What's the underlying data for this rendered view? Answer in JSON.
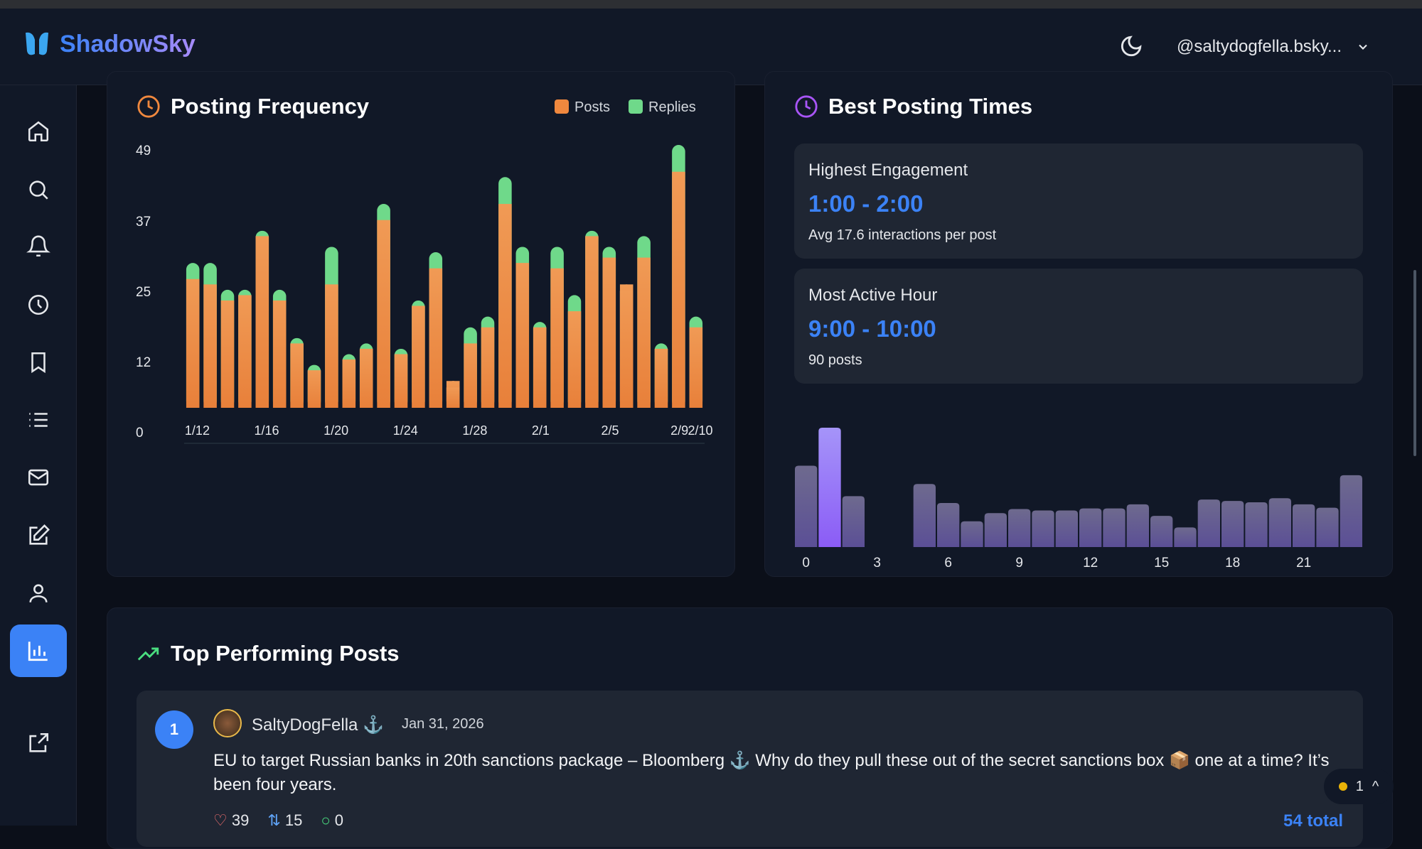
{
  "app": {
    "name": "ShadowSky",
    "user_handle": "@saltydogfella.bsky...",
    "accent": "#3b82f6"
  },
  "sidebar": {
    "items": [
      "home",
      "search",
      "notifications",
      "history",
      "bookmarks",
      "lists",
      "messages",
      "compose",
      "profile",
      "analytics",
      "external-link"
    ],
    "active": "analytics"
  },
  "posting_frequency": {
    "title": "Posting Frequency",
    "legend": [
      "Posts",
      "Replies"
    ]
  },
  "best_times": {
    "title": "Best Posting Times",
    "highest": {
      "label": "Highest Engagement",
      "value": "1:00 - 2:00",
      "sub": "Avg 17.6 interactions per post"
    },
    "active": {
      "label": "Most Active Hour",
      "value": "9:00 - 10:00",
      "sub": "90 posts"
    }
  },
  "chart_data": [
    {
      "type": "bar",
      "stacked": true,
      "categories": [
        "1/12",
        "1/13",
        "1/14",
        "1/15",
        "1/16",
        "1/17",
        "1/18",
        "1/19",
        "1/20",
        "1/21",
        "1/22",
        "1/23",
        "1/24",
        "1/25",
        "1/26",
        "1/27",
        "1/28",
        "1/29",
        "1/30",
        "1/31",
        "2/1",
        "2/2",
        "2/3",
        "2/4",
        "2/5",
        "2/6",
        "2/7",
        "2/8",
        "2/9",
        "2/10"
      ],
      "x_tick_labels": [
        "1/12",
        "1/16",
        "1/20",
        "1/24",
        "1/28",
        "2/1",
        "2/5",
        "2/9",
        "2/10"
      ],
      "y_tick_labels": [
        "49",
        "37",
        "25",
        "12",
        "0"
      ],
      "ylim": [
        0,
        49
      ],
      "series": [
        {
          "name": "Posts",
          "color": "#f0883e",
          "values": [
            24,
            23,
            20,
            21,
            32,
            20,
            12,
            7,
            23,
            9,
            11,
            35,
            10,
            19,
            26,
            5,
            12,
            15,
            38,
            27,
            15,
            26,
            18,
            32,
            28,
            23,
            28,
            11,
            44,
            15
          ]
        },
        {
          "name": "Replies",
          "color": "#6fd98a",
          "values": [
            3,
            4,
            2,
            1,
            1,
            2,
            1,
            1,
            7,
            1,
            1,
            3,
            1,
            1,
            3,
            0,
            3,
            2,
            5,
            3,
            1,
            4,
            3,
            1,
            2,
            0,
            4,
            1,
            5,
            2
          ]
        }
      ]
    },
    {
      "type": "bar",
      "categories": [
        0,
        1,
        2,
        3,
        4,
        5,
        6,
        7,
        8,
        9,
        10,
        11,
        12,
        13,
        14,
        15,
        16,
        17,
        18,
        19,
        20,
        21,
        22,
        23
      ],
      "x_tick_labels": [
        "0",
        "3",
        "6",
        "9",
        "12",
        "15",
        "18",
        "21"
      ],
      "values": [
        12.0,
        17.6,
        7.5,
        0,
        0,
        9.3,
        6.5,
        3.8,
        5.0,
        5.6,
        5.4,
        5.4,
        5.7,
        5.7,
        6.3,
        4.6,
        2.9,
        7.0,
        6.8,
        6.6,
        7.2,
        6.3,
        5.8,
        10.6
      ],
      "highlight": 1,
      "color": "#6b5fa0",
      "highlight_color": "#8b5cf6"
    }
  ],
  "top_posts": {
    "title": "Top Performing Posts",
    "items": [
      {
        "rank": "1",
        "author": "SaltyDogFella ⚓",
        "date": "Jan 31, 2026",
        "text": "EU to target Russian banks in 20th sanctions package – Bloomberg ⚓ Why do they pull these out of the secret sanctions box 📦 one at a time? It’s been four years.",
        "likes": "39",
        "reposts": "15",
        "replies": "0",
        "total": "54 total"
      }
    ]
  },
  "notification_badge": {
    "count": "1"
  }
}
